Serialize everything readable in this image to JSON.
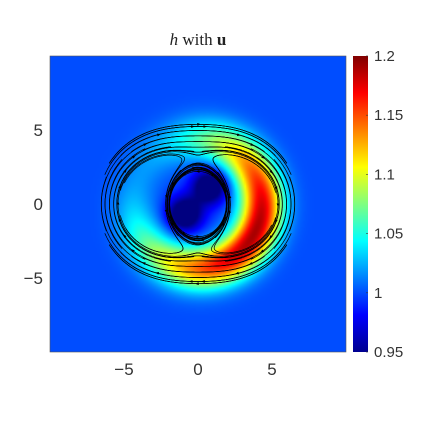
{
  "title": {
    "var": "h",
    "mid": " with ",
    "vec": "u"
  },
  "chart_data": {
    "type": "heatmap",
    "title": "h with u",
    "xlim": [
      -10,
      10
    ],
    "ylim": [
      -10,
      10
    ],
    "x_ticks": [
      -5,
      0,
      5
    ],
    "y_ticks": [
      5,
      0,
      -5
    ],
    "grid": false,
    "colorbar": {
      "min": 0.95,
      "max": 1.2,
      "ticks": [
        1.2,
        1.15,
        1.1,
        1.05,
        1,
        0.95
      ],
      "tick_labels": [
        "1.2",
        "1.15",
        "1.1",
        "1.05",
        "1",
        "0.95"
      ]
    },
    "background_value": 1.0,
    "ring": {
      "radius": 4.3,
      "peak": 1.2,
      "width": 1.0
    },
    "lows": [
      {
        "x": 0.8,
        "y": 1.2,
        "value": 0.97
      },
      {
        "x": -0.9,
        "y": -0.7,
        "value": 0.97
      }
    ],
    "overlay": "streamlines of u (rotating vortex pattern)"
  }
}
